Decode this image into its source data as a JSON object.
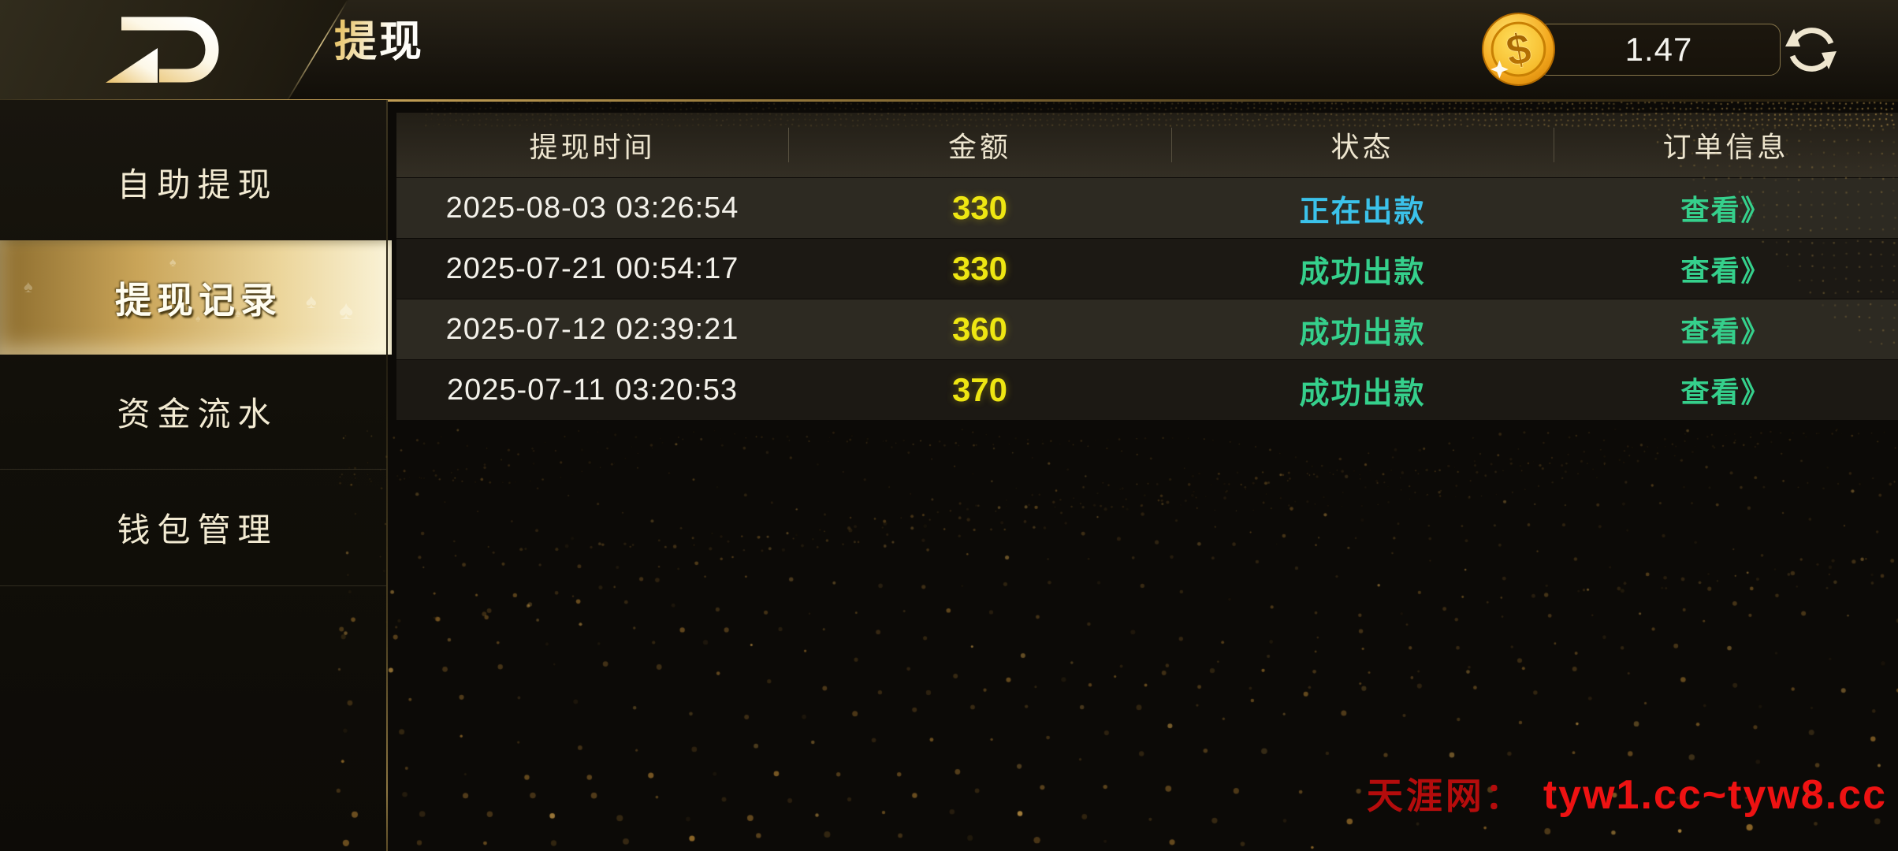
{
  "topbar": {
    "title": "提现",
    "balance": "1.47",
    "logo_icon": "brand-d-arrow-logo",
    "coin_icon": "gold-dollar-coin",
    "refresh_icon": "refresh-sync-arrows"
  },
  "sidebar": {
    "items": [
      {
        "label": "自助提现",
        "active": false
      },
      {
        "label": "提现记录",
        "active": true
      },
      {
        "label": "资金流水",
        "active": false
      },
      {
        "label": "钱包管理",
        "active": false
      }
    ]
  },
  "table": {
    "columns": [
      "提现时间",
      "金额",
      "状态",
      "订单信息"
    ],
    "rows": [
      {
        "time": "2025-08-03 03:26:54",
        "amount": "330",
        "status": "正在出款",
        "status_type": "processing",
        "action": "查看》"
      },
      {
        "time": "2025-07-21 00:54:17",
        "amount": "330",
        "status": "成功出款",
        "status_type": "success",
        "action": "查看》"
      },
      {
        "time": "2025-07-12 02:39:21",
        "amount": "360",
        "status": "成功出款",
        "status_type": "success",
        "action": "查看》"
      },
      {
        "time": "2025-07-11 03:20:53",
        "amount": "370",
        "status": "成功出款",
        "status_type": "success",
        "action": "查看》"
      }
    ]
  },
  "watermark": {
    "site_name": "天涯网：",
    "urls": "tyw1.cc~tyw8.cc"
  },
  "colors": {
    "accent_gold": "#e3bf72",
    "amount_yellow": "#eee612",
    "status_processing": "#3bc2ea",
    "status_success": "#35d08c",
    "watermark_red": "#ee1212"
  }
}
